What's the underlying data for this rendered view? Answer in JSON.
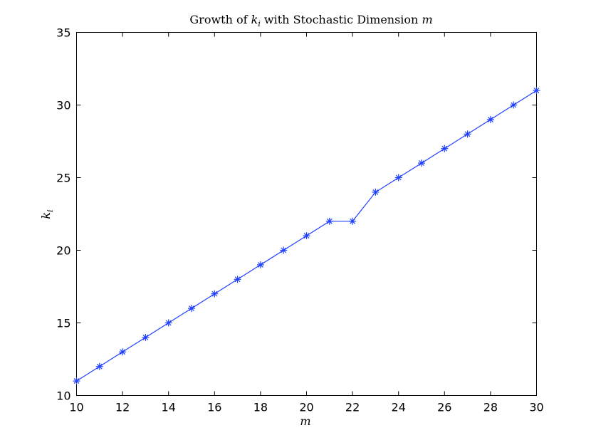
{
  "chart_data": {
    "type": "line",
    "title_parts": {
      "prefix": "Growth of ",
      "k": "k",
      "k_sub": "i",
      "middle": " with Stochastic Dimension ",
      "m": "m"
    },
    "xlabel": "m",
    "ylabel_parts": {
      "k": "k",
      "k_sub": "i"
    },
    "xlim": [
      10,
      30
    ],
    "ylim": [
      10,
      35
    ],
    "xticks": [
      10,
      12,
      14,
      16,
      18,
      20,
      22,
      24,
      26,
      28,
      30
    ],
    "yticks": [
      10,
      15,
      20,
      25,
      30,
      35
    ],
    "grid": false,
    "series": [
      {
        "color": "#1f3fff",
        "marker": "asterisk",
        "x": [
          10,
          11,
          12,
          13,
          14,
          15,
          16,
          17,
          18,
          19,
          20,
          21,
          22,
          23,
          24,
          25,
          26,
          27,
          28,
          29,
          30
        ],
        "y": [
          11,
          12,
          13,
          14,
          15,
          16,
          17,
          18,
          19,
          20,
          21,
          22,
          22,
          24,
          25,
          26,
          27,
          28,
          29,
          30,
          31
        ]
      }
    ]
  }
}
